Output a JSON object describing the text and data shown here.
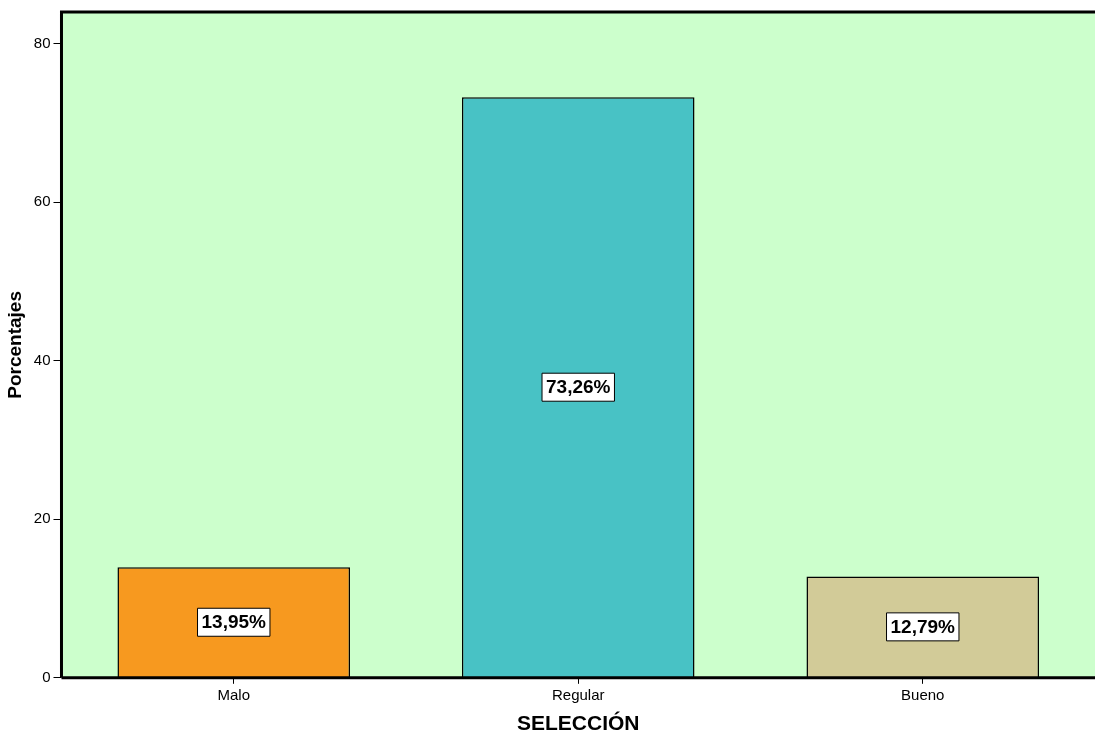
{
  "chart_data": {
    "type": "bar",
    "xlabel": "SELECCIÓN",
    "ylabel": "Porcentajes",
    "categories": [
      "Malo",
      "Regular",
      "Bueno"
    ],
    "values": [
      13.95,
      73.26,
      12.79
    ],
    "colors": [
      "#f7991f",
      "#48c2c5",
      "#d2cb98"
    ],
    "value_labels": [
      "13,95%",
      "73,26%",
      "12,79%"
    ],
    "ylim": [
      0,
      84
    ],
    "yticks": [
      0,
      20,
      40,
      60,
      80
    ],
    "grid": false,
    "legend": false
  }
}
